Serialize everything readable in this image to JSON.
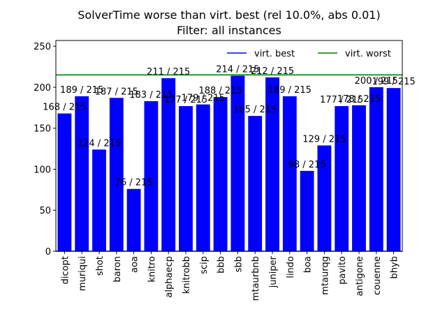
{
  "chart_data": {
    "type": "bar",
    "title": "SolverTime worse than virt. best (rel 10.0%, abs 0.01)",
    "subtitle": "Filter: all instances",
    "xlabel": "",
    "ylabel": "",
    "ylim": [
      0,
      257
    ],
    "yticks": [
      0,
      50,
      100,
      150,
      200,
      250
    ],
    "grid": false,
    "legend_position": "top-right",
    "bar_color": "#0000ff",
    "categories": [
      "dicopt",
      "muriqui",
      "shot",
      "baron",
      "aoa",
      "knitro",
      "alphaecp",
      "knitrobb",
      "scip",
      "bbb",
      "sbb",
      "mtaurbnb",
      "juniper",
      "lindo",
      "boa",
      "mtaurqg",
      "pavito",
      "antigone",
      "couenne",
      "bhyb"
    ],
    "values": [
      168,
      189,
      124,
      187,
      76,
      183,
      211,
      177,
      179,
      188,
      214,
      165,
      212,
      189,
      98,
      129,
      177,
      178,
      200,
      199
    ],
    "bar_labels": [
      "168 / 215",
      "189 / 215",
      "124 / 215",
      "187 / 215",
      "76 / 215",
      "183 / 215",
      "211 / 215",
      "177 / 215",
      "179 / 215",
      "188 / 215",
      "214 / 215",
      "165 / 215",
      "212 / 215",
      "189 / 215",
      "98 / 215",
      "129 / 215",
      "177 / 215",
      "178 / 215",
      "200 / 215",
      "199 / 215"
    ],
    "series": [
      {
        "name": "virt. best",
        "color": "#0000ff",
        "values": [
          0,
          0,
          0,
          0,
          0,
          0,
          0,
          0,
          0,
          0,
          0,
          0,
          0,
          0,
          0,
          0,
          0,
          0,
          0,
          0
        ]
      },
      {
        "name": "virt. worst",
        "color": "#008000",
        "values": [
          215,
          215,
          215,
          215,
          215,
          215,
          215,
          215,
          215,
          215,
          215,
          215,
          215,
          215,
          215,
          215,
          215,
          215,
          215,
          215
        ]
      }
    ]
  }
}
